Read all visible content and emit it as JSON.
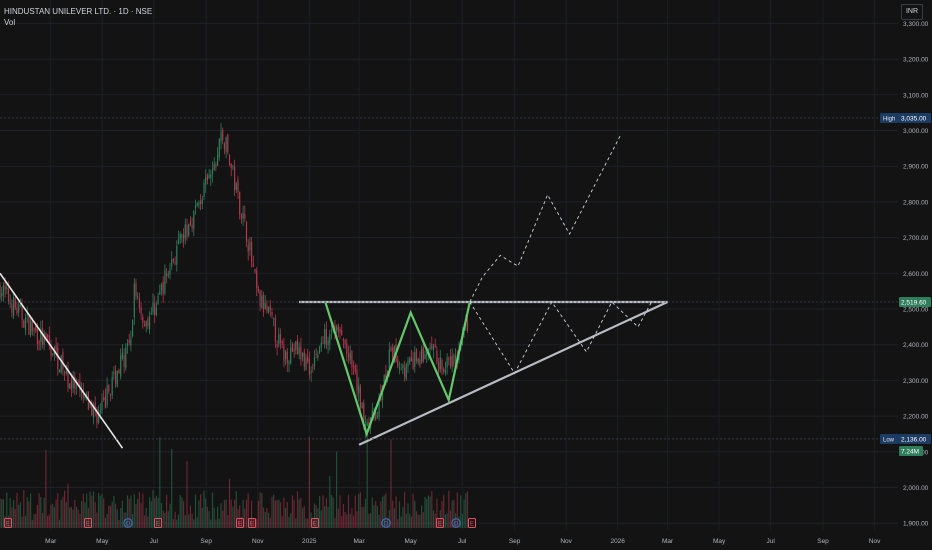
{
  "header": {
    "symbol_title": "HINDUSTAN UNILEVER LTD. · 1D · NSE",
    "volume_label": "Vol"
  },
  "currency_button": "INR",
  "badges": {
    "high_label": "High",
    "high_value": "3,035.00",
    "current_value": "2,519.60",
    "low_label": "Low",
    "low_value": "2,136.00",
    "volume_value": "7.24M"
  },
  "colors": {
    "background": "#131313",
    "up_candle": "#2e7d5b",
    "down_candle": "#b2374c",
    "pattern_line": "#b9bcc4",
    "path_line": "#63c86b",
    "current_badge": "#2e7d5b",
    "high_low_badge": "#1c3b63"
  },
  "event_markers": [
    "E",
    "E",
    "D",
    "E",
    "E",
    "E",
    "E",
    "D",
    "E",
    "D",
    "E"
  ],
  "chart_data": {
    "type": "candlestick",
    "title": "HINDUSTAN UNILEVER LTD. · 1D · NSE",
    "y_unit": "INR",
    "ylim": [
      1880,
      3360
    ],
    "y_ticks": [
      "3,300.00",
      "3,200.00",
      "3,100.00",
      "3,000.00",
      "2,900.00",
      "2,800.00",
      "2,700.00",
      "2,600.00",
      "2,500.00",
      "2,400.00",
      "2,300.00",
      "2,200.00",
      "2,100.00",
      "2,000.00",
      "1,900.00"
    ],
    "x_ticks": [
      "Mar",
      "May",
      "Jul",
      "Sep",
      "Nov",
      "2025",
      "Mar",
      "May",
      "Jul",
      "Sep",
      "Nov",
      "2026",
      "Mar",
      "May",
      "Jul",
      "Sep",
      "Nov"
    ],
    "price_path": [
      [
        "2024-01-01",
        2560
      ],
      [
        "2024-01-20",
        2500
      ],
      [
        "2024-02-10",
        2440
      ],
      [
        "2024-03-05",
        2380
      ],
      [
        "2024-03-25",
        2290
      ],
      [
        "2024-04-15",
        2230
      ],
      [
        "2024-04-28",
        2200
      ],
      [
        "2024-05-10",
        2280
      ],
      [
        "2024-05-25",
        2360
      ],
      [
        "2024-06-05",
        2400
      ],
      [
        "2024-06-08",
        2570
      ],
      [
        "2024-06-20",
        2460
      ],
      [
        "2024-07-01",
        2500
      ],
      [
        "2024-07-20",
        2620
      ],
      [
        "2024-08-05",
        2700
      ],
      [
        "2024-08-20",
        2780
      ],
      [
        "2024-09-02",
        2850
      ],
      [
        "2024-09-12",
        2900
      ],
      [
        "2024-09-18",
        2990
      ],
      [
        "2024-09-24",
        2960
      ],
      [
        "2024-10-05",
        2850
      ],
      [
        "2024-10-20",
        2700
      ],
      [
        "2024-11-01",
        2530
      ],
      [
        "2024-11-15",
        2480
      ],
      [
        "2024-12-01",
        2370
      ],
      [
        "2024-12-15",
        2390
      ],
      [
        "2025-01-02",
        2340
      ],
      [
        "2025-01-15",
        2400
      ],
      [
        "2025-01-28",
        2460
      ],
      [
        "2025-02-12",
        2400
      ],
      [
        "2025-02-25",
        2300
      ],
      [
        "2025-03-06",
        2200
      ],
      [
        "2025-03-15",
        2180
      ],
      [
        "2025-03-25",
        2240
      ],
      [
        "2025-04-08",
        2380
      ],
      [
        "2025-04-25",
        2330
      ],
      [
        "2025-05-10",
        2360
      ],
      [
        "2025-05-25",
        2380
      ],
      [
        "2025-06-10",
        2330
      ],
      [
        "2025-06-25",
        2360
      ],
      [
        "2025-07-08",
        2470
      ]
    ],
    "high": 3035,
    "low": 2136,
    "last": 2519.6,
    "volume_last": "7.24M",
    "annotations": {
      "resistance": 2519.6,
      "support_line": [
        [
          "2025-03-01",
          2120
        ],
        [
          "2026-03-01",
          2519.6
        ]
      ],
      "downtrend_line": [
        [
          "2024-01-01",
          2600
        ],
        [
          "2024-05-25",
          2110
        ]
      ],
      "green_path": [
        [
          "2025-01-20",
          2520
        ],
        [
          "2025-03-10",
          2150
        ],
        [
          "2025-05-01",
          2490
        ],
        [
          "2025-06-15",
          2245
        ],
        [
          "2025-07-10",
          2520
        ]
      ],
      "projection_up": [
        [
          "2025-07-10",
          2520
        ],
        [
          "2025-07-25",
          2590
        ],
        [
          "2025-08-15",
          2650
        ],
        [
          "2025-09-05",
          2620
        ],
        [
          "2025-10-10",
          2820
        ],
        [
          "2025-11-05",
          2710
        ],
        [
          "2026-01-05",
          2990
        ]
      ],
      "projection_triangle": [
        [
          "2025-07-10",
          2520
        ],
        [
          "2025-09-01",
          2320
        ],
        [
          "2025-10-15",
          2519.6
        ],
        [
          "2025-11-25",
          2380
        ],
        [
          "2025-12-25",
          2519.6
        ],
        [
          "2026-01-25",
          2450
        ],
        [
          "2026-02-10",
          2519.6
        ]
      ]
    }
  }
}
